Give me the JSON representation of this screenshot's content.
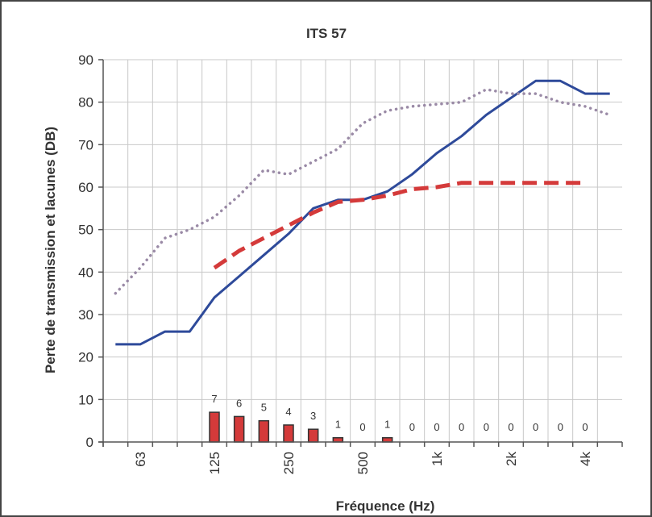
{
  "chart_data": {
    "type": "line",
    "title": "ITS 57",
    "xlabel": "Fréquence (Hz)",
    "ylabel": "Perte de transmission et lacunes (DB)",
    "ylim": [
      0,
      90
    ],
    "yticks": [
      0,
      10,
      20,
      30,
      40,
      50,
      60,
      70,
      80,
      90
    ],
    "x_scale": "log (third-octave bands)",
    "grid": true,
    "x_tick_labels": [
      {
        "label": "63",
        "frequency": 63
      },
      {
        "label": "125",
        "frequency": 125
      },
      {
        "label": "250",
        "frequency": 250
      },
      {
        "label": "500",
        "frequency": 500
      },
      {
        "label": "1k",
        "frequency": 1000
      },
      {
        "label": "2k",
        "frequency": 2000
      },
      {
        "label": "4k",
        "frequency": 4000
      }
    ],
    "series": [
      {
        "style": "solid",
        "color": "#2e4a9a",
        "x": [
          50,
          63,
          80,
          100,
          125,
          160,
          200,
          250,
          315,
          400,
          500,
          630,
          800,
          1000,
          1250,
          1600,
          2000,
          2500,
          3150,
          4000,
          5000
        ],
        "y": [
          23,
          23,
          26,
          26,
          34,
          39,
          44,
          49,
          55,
          57,
          57,
          59,
          63,
          68,
          72,
          77,
          81,
          85,
          85,
          82,
          82
        ]
      },
      {
        "style": "dashed",
        "color": "#d43a3a",
        "x": [
          125,
          160,
          200,
          250,
          315,
          400,
          500,
          630,
          800,
          1000,
          1250,
          1600,
          2000,
          2500,
          3150,
          4000
        ],
        "y": [
          41,
          45,
          48,
          51,
          54,
          56.5,
          57,
          58,
          59.5,
          60,
          61,
          61,
          61,
          61,
          61,
          61
        ]
      },
      {
        "style": "dotted",
        "color": "#9a8aa6",
        "x": [
          50,
          63,
          80,
          100,
          125,
          160,
          200,
          250,
          315,
          400,
          500,
          630,
          800,
          1000,
          1250,
          1600,
          2000,
          2500,
          3150,
          4000,
          5000
        ],
        "y": [
          35,
          41,
          48,
          50,
          53,
          58,
          64,
          63,
          66,
          69,
          75,
          78,
          79,
          79.5,
          80,
          83,
          82,
          82,
          80,
          79,
          77
        ]
      }
    ],
    "deficiency_bars": {
      "color": "#d43a3a",
      "frequencies": [
        125,
        160,
        200,
        250,
        315,
        400,
        500,
        630,
        800,
        1000,
        1250,
        1600,
        2000,
        2500,
        3150,
        4000
      ],
      "values": [
        7,
        6,
        5,
        4,
        3,
        1,
        0,
        1,
        0,
        0,
        0,
        0,
        0,
        0,
        0,
        0
      ],
      "labels": [
        "7",
        "6",
        "5",
        "4",
        "3",
        "1",
        "0",
        "1",
        "0",
        "0",
        "0",
        "0",
        "0",
        "0",
        "0",
        "0"
      ]
    }
  }
}
